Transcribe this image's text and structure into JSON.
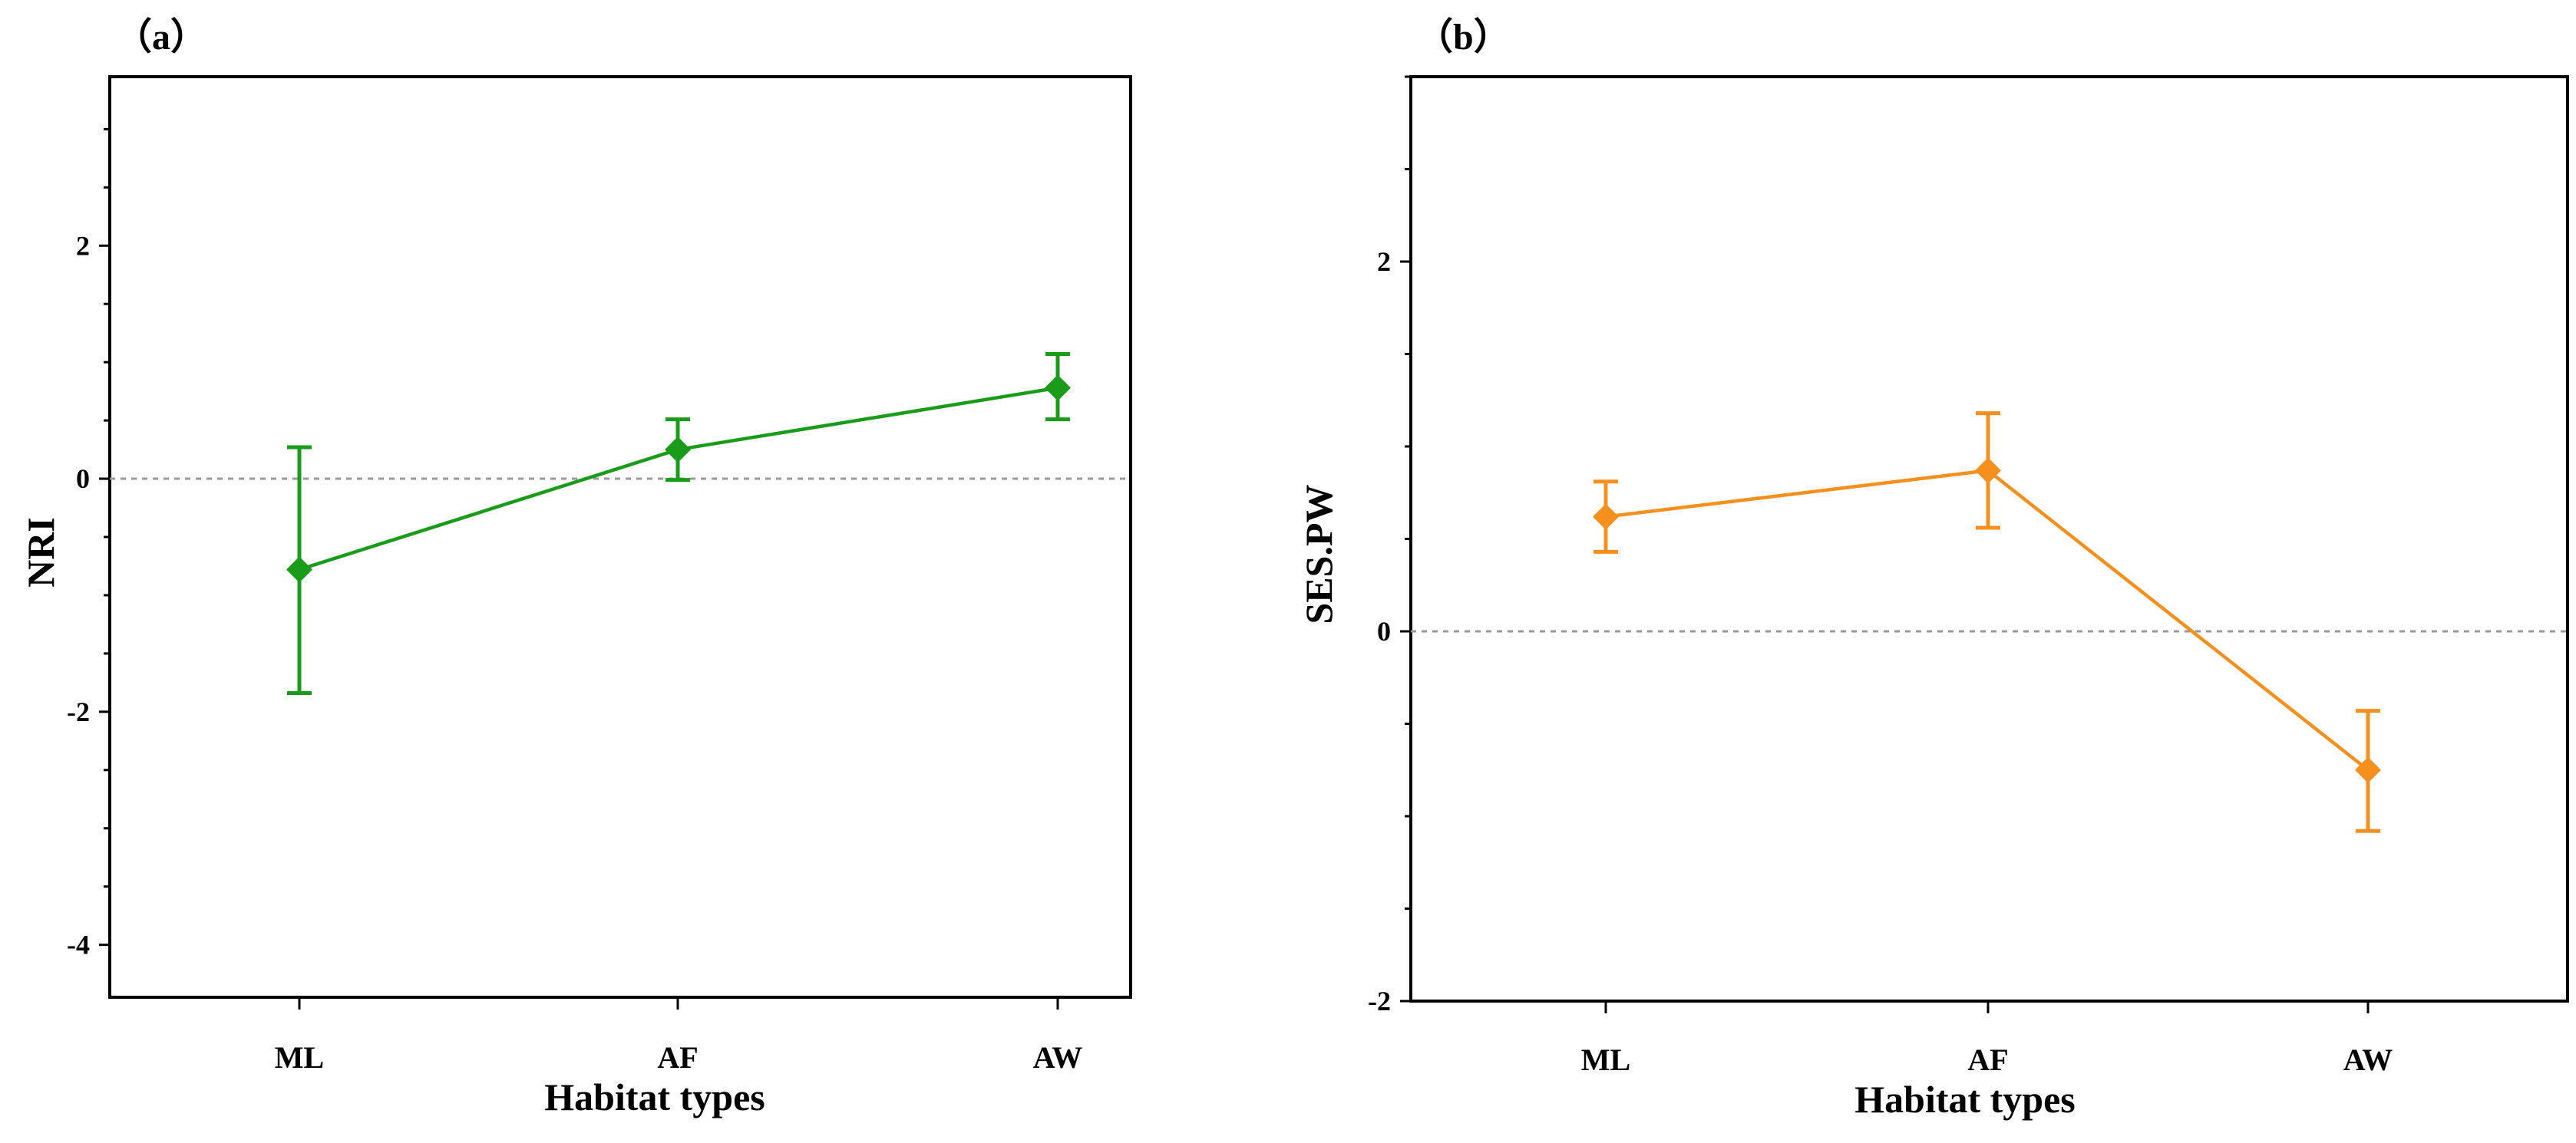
{
  "chart_data": [
    {
      "type": "line",
      "panel_label": "（a）",
      "xlabel": "Habitat types",
      "ylabel": "NRI",
      "categories": [
        "ML",
        "AF",
        "AW"
      ],
      "series": [
        {
          "name": "NRI",
          "color": "#1a9c1a",
          "values": [
            -0.78,
            0.25,
            0.78
          ],
          "error_low": [
            -1.84,
            -0.01,
            0.51
          ],
          "error_high": [
            0.27,
            0.51,
            1.07
          ]
        }
      ],
      "yticks": [
        2,
        0,
        -2,
        -4
      ],
      "ytick_labels": [
        "2",
        "0",
        "-2",
        "-4"
      ],
      "ylim": [
        -4.45,
        3.45
      ],
      "reference_line": 0,
      "reference_color": "#999999"
    },
    {
      "type": "line",
      "panel_label": "（b）",
      "xlabel": "Habitat types",
      "ylabel": "SES.PW",
      "categories": [
        "ML",
        "AF",
        "AW"
      ],
      "series": [
        {
          "name": "SES.PW",
          "color": "#f5901e",
          "values": [
            0.62,
            0.87,
            -0.75
          ],
          "error_low": [
            0.43,
            0.56,
            -1.08
          ],
          "error_high": [
            0.81,
            1.18,
            -0.43
          ]
        }
      ],
      "yticks": [
        2,
        0,
        -2
      ],
      "ytick_labels": [
        "2",
        "0",
        "-2"
      ],
      "ylim": [
        -2.0,
        3.0
      ],
      "reference_line": 0,
      "reference_color": "#999999"
    }
  ]
}
